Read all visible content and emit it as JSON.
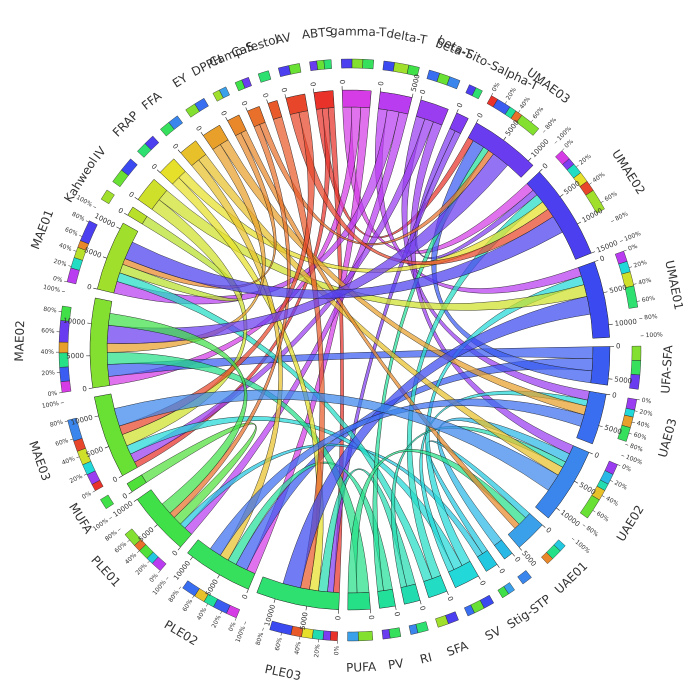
{
  "chart_data": {
    "type": "chord",
    "sectors": [
      {
        "name": "ABTS",
        "value": 3000,
        "color": "#e8322a"
      },
      {
        "name": "gamma-T",
        "value": 4500,
        "color": "#d63ce6"
      },
      {
        "name": "delta-T",
        "value": 5000,
        "color": "#b93cf0"
      },
      {
        "name": "beta-T",
        "value": 4500,
        "color": "#9a3cf0"
      },
      {
        "name": "beta-Sito-Salpha-T",
        "value": 2000,
        "color": "#7f3cf0"
      },
      {
        "name": "UMAE03",
        "value": 11000,
        "color": "#6a3cf0"
      },
      {
        "name": "UMAE02",
        "value": 15000,
        "color": "#4b3ff0"
      },
      {
        "name": "UMAE01",
        "value": 12000,
        "color": "#3a4af0"
      },
      {
        "name": "UFA-SFA",
        "value": 6000,
        "color": "#3a5cf0"
      },
      {
        "name": "UAE03",
        "value": 8000,
        "color": "#3a6ef0"
      },
      {
        "name": "UAE02",
        "value": 12000,
        "color": "#3a86ec"
      },
      {
        "name": "UAE01",
        "value": 5000,
        "color": "#3aa0ea"
      },
      {
        "name": "TP",
        "value": 1500,
        "color": "#2ab8e6"
      },
      {
        "name": "Stig-S",
        "value": 2000,
        "color": "#22c8e0"
      },
      {
        "name": "SV",
        "value": 4000,
        "color": "#22d8d8"
      },
      {
        "name": "SFA",
        "value": 3000,
        "color": "#22dcc4"
      },
      {
        "name": "RI",
        "value": 2500,
        "color": "#22dcb0"
      },
      {
        "name": "PV",
        "value": 2500,
        "color": "#22e09a"
      },
      {
        "name": "PUFA",
        "value": 3500,
        "color": "#26e088"
      },
      {
        "name": "PLE03",
        "value": 13000,
        "color": "#2ee070"
      },
      {
        "name": "PLE02",
        "value": 11000,
        "color": "#36e05c"
      },
      {
        "name": "PLE01",
        "value": 10000,
        "color": "#40e048"
      },
      {
        "name": "MUFA",
        "value": 1500,
        "color": "#50e03a"
      },
      {
        "name": "MAE03",
        "value": 13000,
        "color": "#68e034"
      },
      {
        "name": "MAE02",
        "value": 14000,
        "color": "#84e030"
      },
      {
        "name": "MAE01",
        "value": 11000,
        "color": "#a0e02c"
      },
      {
        "name": "Kahweol",
        "value": 1500,
        "color": "#b8e02a"
      },
      {
        "name": "IV",
        "value": 4000,
        "color": "#cfe02a"
      },
      {
        "name": "FRAP",
        "value": 3000,
        "color": "#e6e02a"
      },
      {
        "name": "FFA",
        "value": 3000,
        "color": "#e8c02a"
      },
      {
        "name": "EY",
        "value": 3000,
        "color": "#e8a02a"
      },
      {
        "name": "DPPH",
        "value": 2000,
        "color": "#e8882a"
      },
      {
        "name": "Camp-S",
        "value": 2000,
        "color": "#e8702a"
      },
      {
        "name": "Cafestol",
        "value": 1500,
        "color": "#e85a2a"
      },
      {
        "name": "AV",
        "value": 3000,
        "color": "#e8462a"
      }
    ],
    "links": [
      {
        "source": 0,
        "target": 5,
        "value": 1000
      },
      {
        "source": 0,
        "target": 23,
        "value": 1000
      },
      {
        "source": 0,
        "target": 19,
        "value": 1000
      },
      {
        "source": 1,
        "target": 6,
        "value": 1500
      },
      {
        "source": 1,
        "target": 24,
        "value": 1500
      },
      {
        "source": 1,
        "target": 20,
        "value": 1500
      },
      {
        "source": 2,
        "target": 7,
        "value": 1500
      },
      {
        "source": 2,
        "target": 25,
        "value": 2000
      },
      {
        "source": 2,
        "target": 21,
        "value": 1500
      },
      {
        "source": 3,
        "target": 9,
        "value": 1500
      },
      {
        "source": 3,
        "target": 23,
        "value": 1500
      },
      {
        "source": 3,
        "target": 10,
        "value": 1500
      },
      {
        "source": 4,
        "target": 6,
        "value": 1000
      },
      {
        "source": 4,
        "target": 19,
        "value": 1000
      },
      {
        "source": 8,
        "target": 24,
        "value": 2000
      },
      {
        "source": 8,
        "target": 20,
        "value": 2000
      },
      {
        "source": 8,
        "target": 5,
        "value": 2000
      },
      {
        "source": 12,
        "target": 10,
        "value": 1500
      },
      {
        "source": 13,
        "target": 11,
        "value": 1000
      },
      {
        "source": 13,
        "target": 21,
        "value": 1000
      },
      {
        "source": 14,
        "target": 7,
        "value": 1500
      },
      {
        "source": 14,
        "target": 23,
        "value": 1500
      },
      {
        "source": 14,
        "target": 9,
        "value": 1000
      },
      {
        "source": 15,
        "target": 6,
        "value": 1500
      },
      {
        "source": 15,
        "target": 25,
        "value": 1500
      },
      {
        "source": 16,
        "target": 19,
        "value": 1500
      },
      {
        "source": 16,
        "target": 10,
        "value": 1000
      },
      {
        "source": 17,
        "target": 20,
        "value": 1500
      },
      {
        "source": 17,
        "target": 5,
        "value": 1000
      },
      {
        "source": 18,
        "target": 24,
        "value": 2000
      },
      {
        "source": 18,
        "target": 11,
        "value": 1500
      },
      {
        "source": 22,
        "target": 21,
        "value": 1500
      },
      {
        "source": 26,
        "target": 25,
        "value": 1500
      },
      {
        "source": 27,
        "target": 23,
        "value": 2000
      },
      {
        "source": 27,
        "target": 7,
        "value": 2000
      },
      {
        "source": 28,
        "target": 19,
        "value": 1500
      },
      {
        "source": 28,
        "target": 6,
        "value": 1500
      },
      {
        "source": 29,
        "target": 20,
        "value": 1500
      },
      {
        "source": 29,
        "target": 10,
        "value": 1500
      },
      {
        "source": 30,
        "target": 24,
        "value": 1500
      },
      {
        "source": 30,
        "target": 9,
        "value": 1500
      },
      {
        "source": 31,
        "target": 25,
        "value": 1000
      },
      {
        "source": 31,
        "target": 11,
        "value": 1000
      },
      {
        "source": 32,
        "target": 21,
        "value": 1000
      },
      {
        "source": 32,
        "target": 5,
        "value": 1000
      },
      {
        "source": 33,
        "target": 19,
        "value": 1500
      },
      {
        "source": 34,
        "target": 6,
        "value": 1500
      },
      {
        "source": 34,
        "target": 23,
        "value": 1500
      },
      {
        "source": 5,
        "target": 24,
        "value": 3000
      },
      {
        "source": 6,
        "target": 25,
        "value": 3000
      },
      {
        "source": 7,
        "target": 19,
        "value": 3000
      },
      {
        "source": 9,
        "target": 20,
        "value": 2000
      },
      {
        "source": 10,
        "target": 23,
        "value": 3000
      },
      {
        "source": 21,
        "target": 24,
        "value": 2000
      }
    ],
    "axis_ticks": [
      0,
      5000,
      10000,
      15000
    ],
    "percent_ticks": [
      {
        "value": 0,
        "label": "0%"
      },
      {
        "value": 20,
        "label": "20%"
      },
      {
        "value": 40,
        "label": "40%"
      },
      {
        "value": 60,
        "label": "60%"
      },
      {
        "value": 80,
        "label": "80%"
      },
      {
        "value": 100,
        "label": "100%"
      }
    ]
  }
}
